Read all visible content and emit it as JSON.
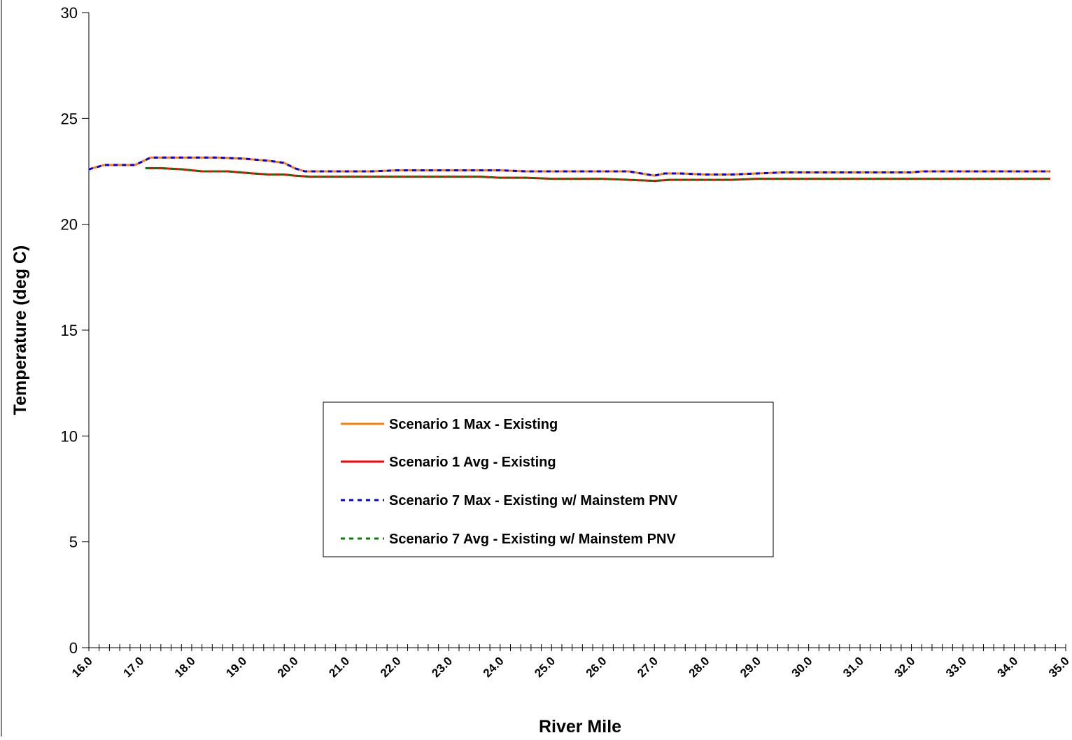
{
  "chart_data": {
    "type": "line",
    "title": "",
    "xlabel": "River Mile",
    "ylabel": "Temperature (deg C)",
    "xlim": [
      16.0,
      35.0
    ],
    "ylim": [
      0,
      30
    ],
    "yticks": [
      "0",
      "5",
      "10",
      "15",
      "20",
      "25",
      "30"
    ],
    "xticks": [
      "16.0",
      "17.0",
      "18.0",
      "19.0",
      "20.0",
      "21.0",
      "22.0",
      "23.0",
      "24.0",
      "25.0",
      "26.0",
      "27.0",
      "28.0",
      "29.0",
      "30.0",
      "31.0",
      "32.0",
      "33.0",
      "34.0",
      "35.0"
    ],
    "grid": false,
    "legend_position": "center-left",
    "series": [
      {
        "name": "Scenario 1 Max - Existing",
        "color": "#ff7f00",
        "style": "solid",
        "x": [
          16.0,
          16.3,
          16.6,
          16.9,
          17.2,
          17.5,
          18.0,
          18.5,
          19.0,
          19.5,
          19.8,
          20.0,
          20.2,
          20.5,
          21.0,
          21.5,
          22.0,
          22.5,
          23.0,
          23.5,
          24.0,
          24.5,
          25.0,
          25.5,
          26.0,
          26.5,
          27.0,
          27.2,
          27.5,
          28.0,
          28.5,
          29.0,
          29.5,
          30.0,
          31.0,
          32.0,
          32.2,
          33.0,
          34.0,
          34.7
        ],
        "y": [
          22.6,
          22.8,
          22.8,
          22.8,
          23.15,
          23.15,
          23.15,
          23.15,
          23.1,
          23.0,
          22.9,
          22.65,
          22.5,
          22.5,
          22.5,
          22.5,
          22.55,
          22.55,
          22.55,
          22.55,
          22.55,
          22.5,
          22.5,
          22.5,
          22.5,
          22.5,
          22.3,
          22.4,
          22.4,
          22.35,
          22.35,
          22.4,
          22.45,
          22.45,
          22.45,
          22.45,
          22.5,
          22.5,
          22.5,
          22.5
        ]
      },
      {
        "name": "Scenario 1 Avg - Existing",
        "color": "#ff0000",
        "style": "solid",
        "x": [
          17.1,
          17.4,
          17.8,
          18.2,
          18.7,
          19.2,
          19.5,
          19.8,
          20.0,
          20.3,
          21.0,
          22.0,
          23.0,
          23.6,
          24.0,
          24.5,
          25.0,
          26.0,
          26.5,
          27.0,
          27.3,
          27.5,
          28.0,
          28.5,
          29.0,
          30.0,
          31.0,
          32.0,
          33.0,
          34.0,
          34.7
        ],
        "y": [
          22.65,
          22.65,
          22.6,
          22.5,
          22.5,
          22.4,
          22.35,
          22.35,
          22.3,
          22.25,
          22.25,
          22.25,
          22.25,
          22.25,
          22.2,
          22.2,
          22.15,
          22.15,
          22.1,
          22.05,
          22.1,
          22.1,
          22.1,
          22.1,
          22.15,
          22.15,
          22.15,
          22.15,
          22.15,
          22.15,
          22.15
        ]
      },
      {
        "name": "Scenario 7 Max - Existing w/ Mainstem PNV",
        "color": "#0000ff",
        "style": "dashed",
        "x": [
          16.0,
          16.3,
          16.6,
          16.9,
          17.2,
          17.5,
          18.0,
          18.5,
          19.0,
          19.5,
          19.8,
          20.0,
          20.2,
          20.5,
          21.0,
          21.5,
          22.0,
          22.5,
          23.0,
          23.5,
          24.0,
          24.5,
          25.0,
          25.5,
          26.0,
          26.5,
          27.0,
          27.2,
          27.5,
          28.0,
          28.5,
          29.0,
          29.5,
          30.0,
          31.0,
          32.0,
          32.2,
          33.0,
          34.0,
          34.7
        ],
        "y": [
          22.6,
          22.8,
          22.8,
          22.8,
          23.15,
          23.15,
          23.15,
          23.15,
          23.1,
          23.0,
          22.9,
          22.65,
          22.5,
          22.5,
          22.5,
          22.5,
          22.55,
          22.55,
          22.55,
          22.55,
          22.55,
          22.5,
          22.5,
          22.5,
          22.5,
          22.5,
          22.3,
          22.4,
          22.4,
          22.35,
          22.35,
          22.4,
          22.45,
          22.45,
          22.45,
          22.45,
          22.5,
          22.5,
          22.5,
          22.5
        ]
      },
      {
        "name": "Scenario 7 Avg - Existing w/ Mainstem PNV",
        "color": "#008000",
        "style": "dashed",
        "x": [
          17.1,
          17.4,
          17.8,
          18.2,
          18.7,
          19.2,
          19.5,
          19.8,
          20.0,
          20.3,
          21.0,
          22.0,
          23.0,
          23.6,
          24.0,
          24.5,
          25.0,
          26.0,
          26.5,
          27.0,
          27.3,
          27.5,
          28.0,
          28.5,
          29.0,
          30.0,
          31.0,
          32.0,
          33.0,
          34.0,
          34.7
        ],
        "y": [
          22.65,
          22.65,
          22.6,
          22.5,
          22.5,
          22.4,
          22.35,
          22.35,
          22.3,
          22.25,
          22.25,
          22.25,
          22.25,
          22.25,
          22.2,
          22.2,
          22.15,
          22.15,
          22.1,
          22.05,
          22.1,
          22.1,
          22.1,
          22.1,
          22.15,
          22.15,
          22.15,
          22.15,
          22.15,
          22.15,
          22.15
        ]
      }
    ]
  }
}
